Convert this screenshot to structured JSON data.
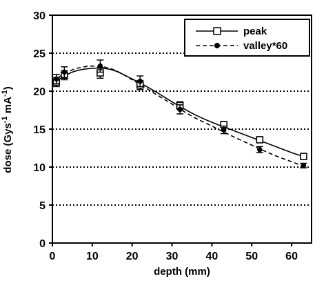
{
  "chart_data": {
    "type": "line",
    "xlabel": "depth (mm)",
    "ylabel": "dose (Gys-1 mA-1)",
    "ylabel_parts": {
      "base": "dose (Gys",
      "exp1": "-1",
      "mid": " mA",
      "exp2": "-1",
      "end": ")"
    },
    "xlim": [
      0,
      65
    ],
    "ylim": [
      0,
      30
    ],
    "x_ticks": [
      "0",
      "10",
      "20",
      "30",
      "40",
      "50",
      "60"
    ],
    "y_ticks": [
      "0",
      "5",
      "10",
      "15",
      "20",
      "25",
      "30"
    ],
    "grid": "horizontal dotted",
    "legend_position": "top-right",
    "series": [
      {
        "name": "peak",
        "marker": "open-square",
        "line": "solid",
        "x": [
          1,
          3,
          12,
          22,
          32,
          43,
          52,
          63
        ],
        "y": [
          21.2,
          22.1,
          22.4,
          20.8,
          18.1,
          15.6,
          13.6,
          11.4
        ],
        "err": [
          0.6,
          0.6,
          0.7,
          0.6,
          0.5,
          0.4,
          0.3,
          0.3
        ]
      },
      {
        "name": "valley*60",
        "marker": "filled-circle",
        "line": "dashed",
        "x": [
          1,
          3,
          12,
          22,
          32,
          43,
          52,
          63
        ],
        "y": [
          21.6,
          22.5,
          23.3,
          21.3,
          17.6,
          14.9,
          12.3,
          10.2
        ],
        "err": [
          0.6,
          0.7,
          0.8,
          0.7,
          0.6,
          0.5,
          0.4,
          0.3
        ]
      }
    ],
    "curves": [
      {
        "series": "peak",
        "x": [
          0,
          5,
          10,
          15,
          20,
          25,
          30,
          35,
          40,
          45,
          50,
          55,
          60,
          63
        ],
        "y": [
          21.0,
          22.5,
          23.0,
          22.8,
          21.6,
          20.2,
          18.6,
          17.1,
          15.9,
          14.9,
          13.9,
          12.9,
          11.9,
          11.4
        ]
      },
      {
        "series": "valley*60",
        "x": [
          0,
          5,
          10,
          15,
          20,
          25,
          30,
          35,
          40,
          45,
          50,
          55,
          60,
          63
        ],
        "y": [
          21.3,
          22.8,
          23.3,
          22.9,
          21.5,
          19.9,
          18.3,
          16.7,
          15.4,
          14.1,
          12.9,
          11.7,
          10.7,
          10.1
        ]
      }
    ]
  },
  "colors": {
    "ink": "#000000",
    "background": "#ffffff"
  }
}
